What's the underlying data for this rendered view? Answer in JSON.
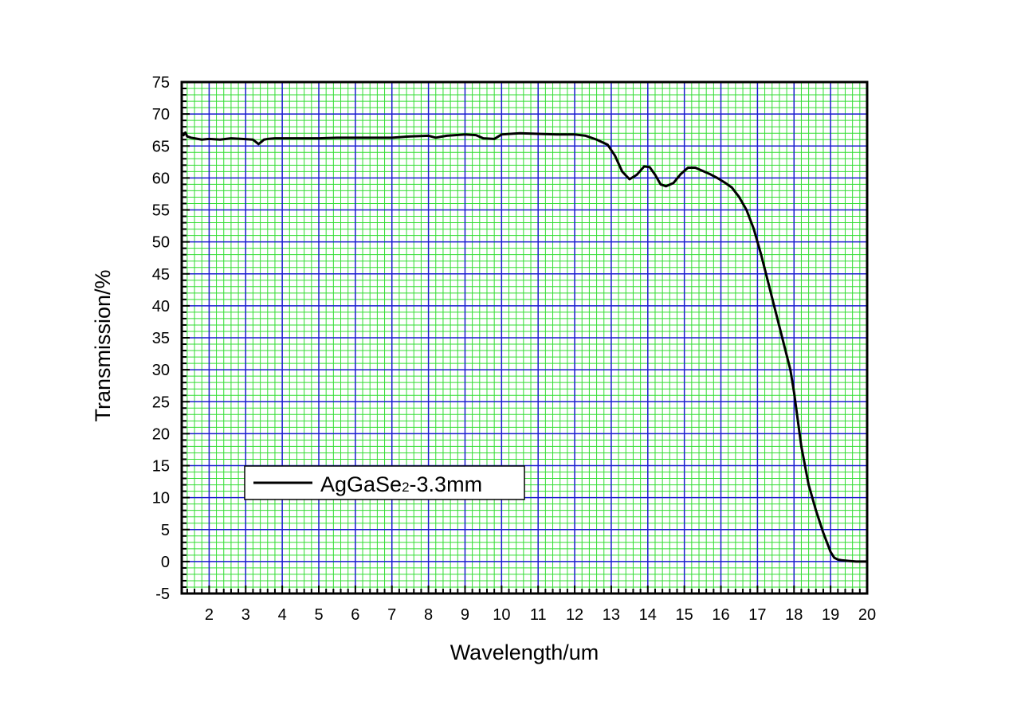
{
  "chart_data": {
    "type": "line",
    "title": "",
    "xlabel": "Wavelength/um",
    "ylabel": "Transmission/%",
    "xlim": [
      1.25,
      20
    ],
    "ylim": [
      -5,
      75
    ],
    "x_ticks": [
      2,
      3,
      4,
      5,
      6,
      7,
      8,
      9,
      10,
      11,
      12,
      13,
      14,
      15,
      16,
      17,
      18,
      19,
      20
    ],
    "y_ticks": [
      -5,
      0,
      5,
      10,
      15,
      20,
      25,
      30,
      35,
      40,
      45,
      50,
      55,
      60,
      65,
      70,
      75
    ],
    "x_tick_labels": [
      "2",
      "3",
      "4",
      "5",
      "6",
      "7",
      "8",
      "9",
      "10",
      "11",
      "12",
      "13",
      "14",
      "15",
      "16",
      "17",
      "18",
      "19",
      "20"
    ],
    "y_tick_labels": [
      "-5",
      "0",
      "5",
      "10",
      "15",
      "20",
      "25",
      "30",
      "35",
      "40",
      "45",
      "50",
      "55",
      "60",
      "65",
      "70",
      "75"
    ],
    "grid": true,
    "grid_colors": {
      "minor": "#33dd33",
      "major": "#1a1ad0",
      "background": "#ffffff"
    },
    "legend": {
      "placement": "lower-left",
      "series_label_main": "AgGaSe",
      "series_label_sub": "2",
      "series_label_rest": "-3.3mm"
    },
    "series": [
      {
        "color": "#000000",
        "x": [
          1.25,
          1.3,
          1.35,
          1.4,
          1.5,
          1.6,
          1.8,
          2.0,
          2.3,
          2.6,
          2.9,
          3.2,
          3.35,
          3.42,
          3.5,
          3.6,
          3.8,
          4.0,
          4.5,
          5.0,
          5.5,
          6.0,
          6.5,
          7.0,
          7.5,
          8.0,
          8.2,
          8.5,
          9.0,
          9.3,
          9.5,
          9.8,
          10.0,
          10.5,
          11.0,
          11.5,
          12.0,
          12.3,
          12.6,
          12.9,
          13.1,
          13.3,
          13.5,
          13.7,
          13.9,
          14.05,
          14.2,
          14.35,
          14.5,
          14.7,
          14.9,
          15.1,
          15.3,
          15.5,
          15.7,
          15.9,
          16.1,
          16.3,
          16.5,
          16.7,
          16.9,
          17.1,
          17.3,
          17.5,
          17.7,
          17.9,
          18.0,
          18.2,
          18.4,
          18.6,
          18.8,
          19.0,
          19.1,
          19.2,
          19.3,
          19.5,
          19.7,
          19.9,
          20.0
        ],
        "y": [
          67,
          66.7,
          67.1,
          66.5,
          66.3,
          66.2,
          66.0,
          66.1,
          66.0,
          66.2,
          66.1,
          66.0,
          65.3,
          65.6,
          66.0,
          66.1,
          66.2,
          66.2,
          66.2,
          66.2,
          66.3,
          66.3,
          66.3,
          66.3,
          66.5,
          66.6,
          66.3,
          66.6,
          66.8,
          66.7,
          66.2,
          66.1,
          66.8,
          67.0,
          66.9,
          66.8,
          66.8,
          66.6,
          66.0,
          65.2,
          63.5,
          61.0,
          59.8,
          60.5,
          61.8,
          61.7,
          60.5,
          59.0,
          58.7,
          59.2,
          60.6,
          61.6,
          61.6,
          61.1,
          60.6,
          60.0,
          59.3,
          58.5,
          57.0,
          55.0,
          52.0,
          48.0,
          43.5,
          39.0,
          34.5,
          30.0,
          26.5,
          18.0,
          12.0,
          8.0,
          4.5,
          1.5,
          0.6,
          0.3,
          0.2,
          0.1,
          0.0,
          0.0,
          0.0
        ]
      }
    ]
  }
}
